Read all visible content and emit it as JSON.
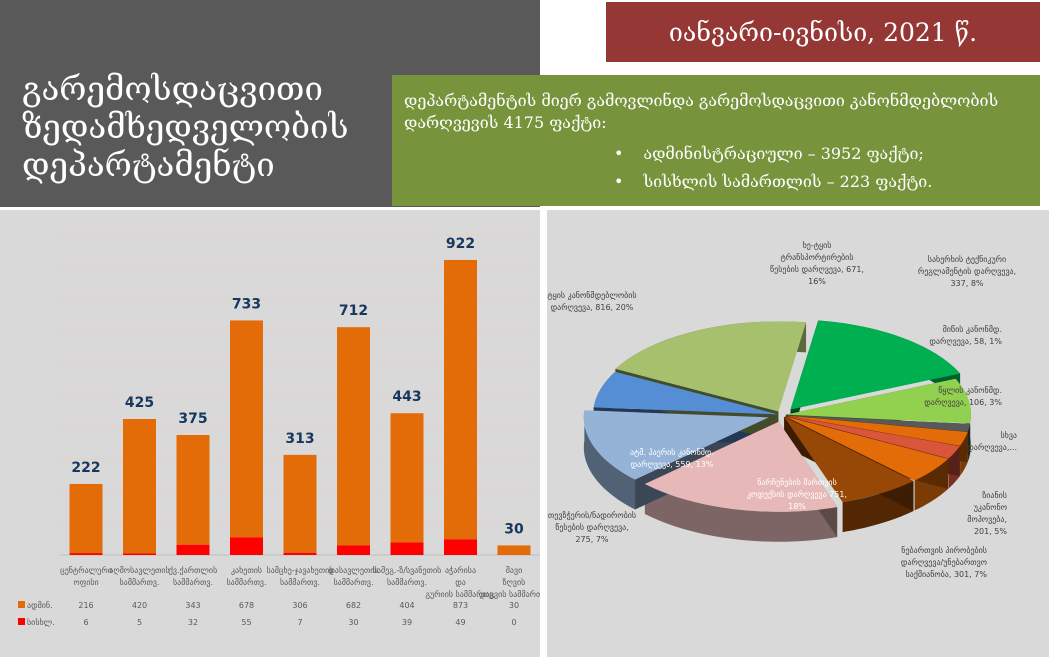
{
  "header": {
    "title_lines": [
      "გარემოსდაცვითი",
      "ზედამხედველობის",
      "დეპარტამენტი"
    ],
    "period": "იანვარი-ივნისი, 2021 წ."
  },
  "summary": {
    "text": "დეპარტამენტის მიერ გამოვლინდა გარემოსდაცვითი კანონმდებლობის დარღვევის 4175 ფაქტი:",
    "items": [
      "ადმინისტრაციული – 3952 ფაქტი;",
      "სისხლის სამართლის – 223 ფაქტი."
    ]
  },
  "colors": {
    "admin": "#e36c09",
    "criminal": "#ff0000",
    "title_bg": "#595959",
    "period_bg": "#953735",
    "summary_bg": "#77933c"
  },
  "chart_data": [
    {
      "type": "bar",
      "stacked": true,
      "grid": true,
      "categories": [
        "ცენტრალური ოფისი",
        "აღმოსავლეთის სამმართვ.",
        "ქვ.ქართლის სამმართვ.",
        "კახეთის სამმართვ.",
        "სამცხე-ჯავახეთის სამმართვ.",
        "დასავლეთის სამმართვ.",
        "სამეგ.-ზ/სვანეთის სამმართვ.",
        "აჭარისა და გურიის სამმართვ.",
        "შავი ზღვის დაცვის სამმართვ."
      ],
      "totals": [
        222,
        425,
        375,
        733,
        313,
        712,
        443,
        922,
        30
      ],
      "series": [
        {
          "name": "ადმინ.",
          "values": [
            216,
            420,
            343,
            678,
            306,
            682,
            404,
            873,
            30
          ]
        },
        {
          "name": "სისხლ.",
          "values": [
            6,
            5,
            32,
            55,
            7,
            30,
            39,
            49,
            0
          ]
        }
      ],
      "ylim": [
        0,
        1000
      ]
    },
    {
      "type": "pie",
      "style": "3d-exploded",
      "slices": [
        {
          "label": "ხე-ტყის ტრანსპორტირების წესების დარღვევა, 671, 16%",
          "value": 671,
          "color": "#00b050"
        },
        {
          "label": "სახერხის ტექნიკური რეგლამენტის დარღვევა, 337, 8%",
          "value": 337,
          "color": "#92d050"
        },
        {
          "label": "მიწის კანონმდ. დარღვევა, 58, 1%",
          "value": 58,
          "color": "#595959"
        },
        {
          "label": "წყლის კანონმდ. დარღვევა, 106, 3%",
          "value": 106,
          "color": "#e36c09"
        },
        {
          "label": "სხვა დარღვევა,...",
          "value": 100,
          "color": "#d9563b"
        },
        {
          "label": "ზიანის უკანონო მოპოვება, 201, 5%",
          "value": 201,
          "color": "#e36c09"
        },
        {
          "label": "ნებართვის პირობების დარღვევა/უნებართვო საქმიანობა, 301, 7%",
          "value": 301,
          "color": "#974706"
        },
        {
          "label": "ნარჩენების მართვის კოდექსის დარღვევა 751, 18%",
          "value": 751,
          "color": "#e6b9b8"
        },
        {
          "label": "ატმ. ჰაერის კანონმდ. დარღვევა, 559, 13%",
          "value": 559,
          "color": "#95b3d7"
        },
        {
          "label": "თევზჭერის/ნადირობის წესების დარღვევა, 275, 7%",
          "value": 275,
          "color": "#558ed5"
        },
        {
          "label": "ტყის კანონმდებლობის დარღვევა, 816, 20%",
          "value": 816,
          "color": "#a6c06d"
        }
      ]
    }
  ]
}
